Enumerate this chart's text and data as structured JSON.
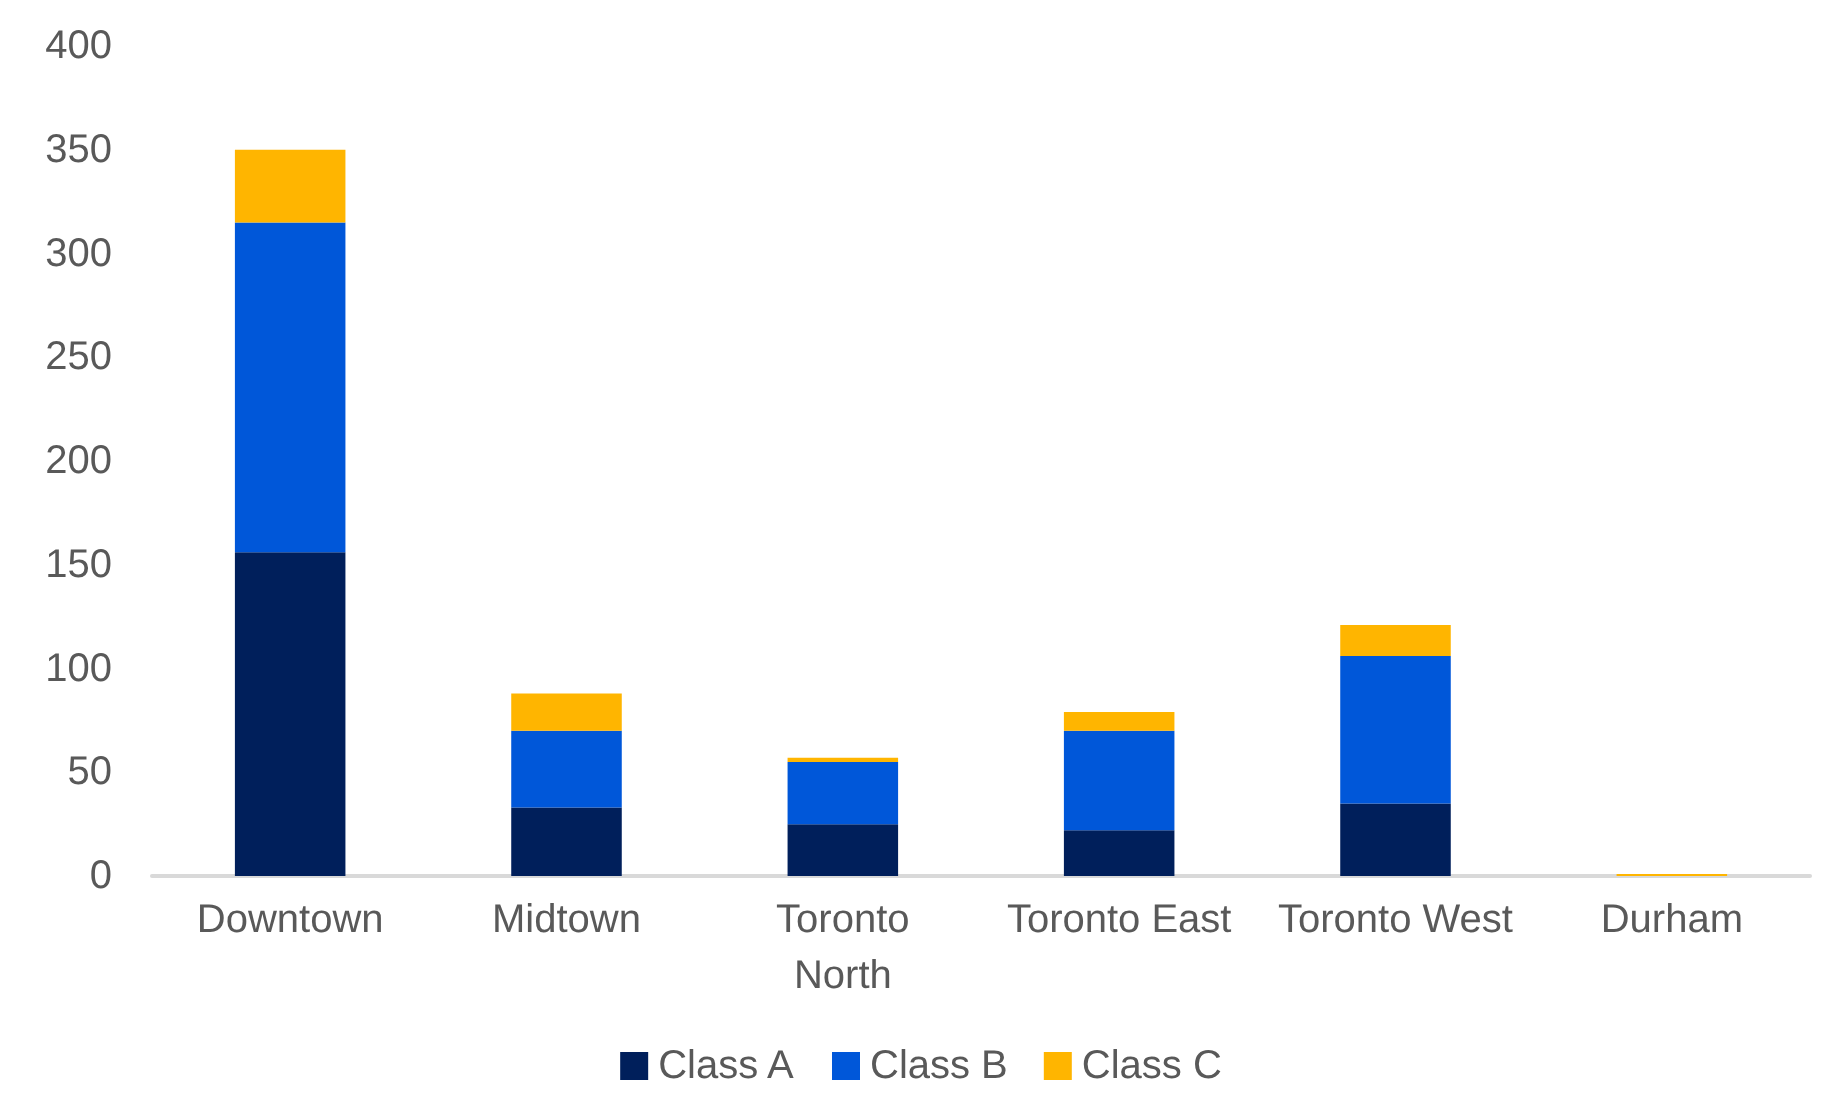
{
  "chart_data": {
    "type": "bar",
    "stacked": true,
    "categories": [
      "Downtown",
      "Midtown",
      "Toronto\nNorth",
      "Toronto East",
      "Toronto West",
      "Durham"
    ],
    "series": [
      {
        "name": "Class A",
        "color": "#001f5b",
        "values": [
          156,
          33,
          25,
          22,
          35,
          0
        ]
      },
      {
        "name": "Class B",
        "color": "#0057d9",
        "values": [
          159,
          37,
          30,
          48,
          71,
          0
        ]
      },
      {
        "name": "Class C",
        "color": "#ffb500",
        "values": [
          35,
          18,
          2,
          9,
          15,
          1
        ]
      }
    ],
    "ylim": [
      0,
      400
    ],
    "yticks": [
      0,
      50,
      100,
      150,
      200,
      250,
      300,
      350,
      400
    ],
    "grid": false,
    "legend": "bottom"
  }
}
